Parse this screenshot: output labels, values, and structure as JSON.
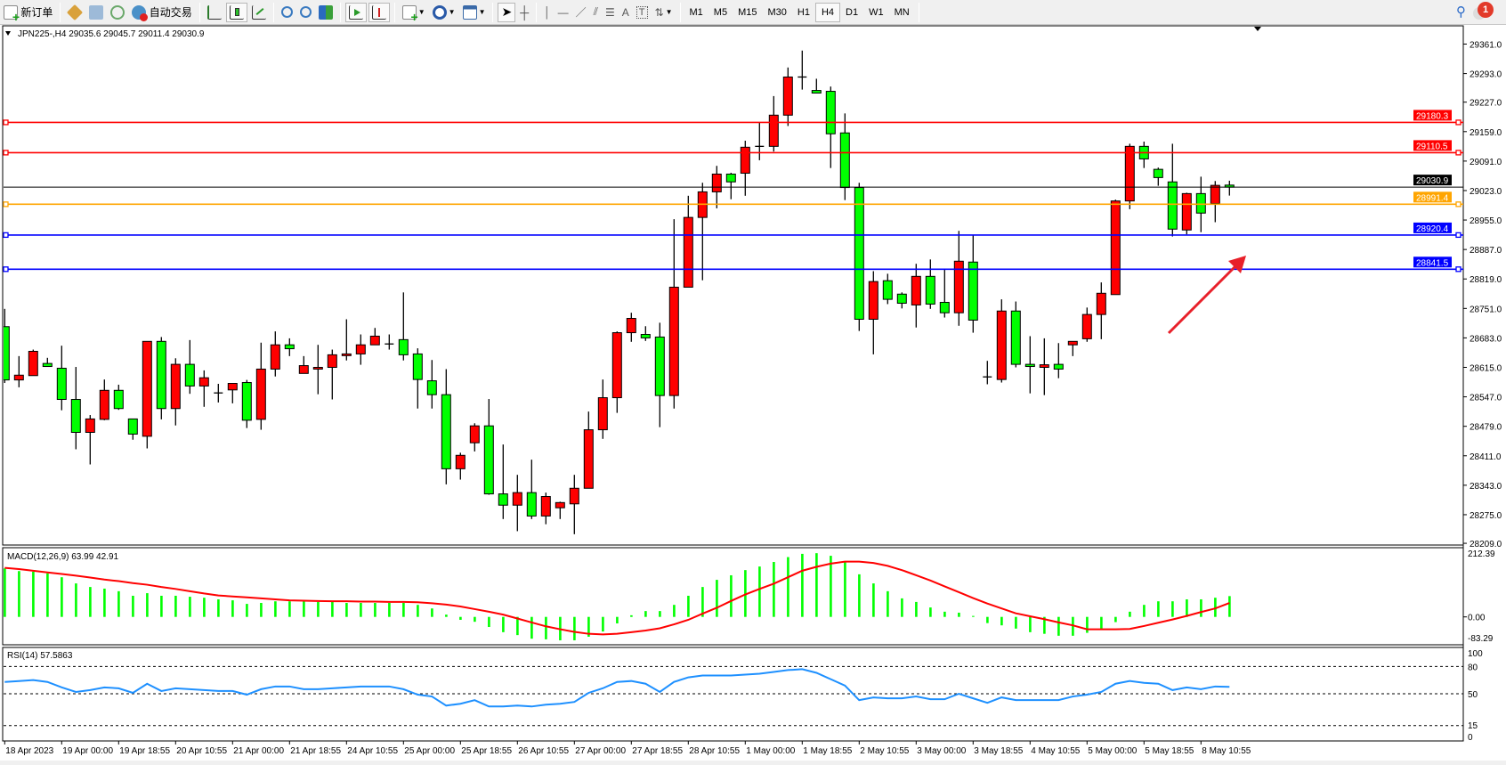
{
  "toolbar": {
    "new_order": "新订单",
    "auto_trading": "自动交易",
    "timeframes": [
      "M1",
      "M5",
      "M15",
      "M30",
      "H1",
      "H4",
      "D1",
      "W1",
      "MN"
    ],
    "active_timeframe": "H4",
    "notification_count": "1",
    "icons": [
      "new-order-icon",
      "market-watch-icon",
      "navigator-icon",
      "signals-icon",
      "auto-trading-icon",
      "bar-chart-icon",
      "candlestick-icon",
      "line-chart-icon",
      "zoom-in-icon",
      "zoom-out-icon",
      "tile-windows-icon",
      "chart-shift-icon",
      "autoscroll-icon",
      "indicators-icon",
      "periods-icon",
      "templates-icon",
      "cursor-icon",
      "crosshair-icon",
      "vertical-line-icon",
      "horizontal-line-icon",
      "trendline-icon",
      "fibonacci-icon",
      "fibo-fan-icon",
      "text-icon",
      "text-label-icon",
      "arrows-icon",
      "search-icon",
      "notification-icon"
    ]
  },
  "chart": {
    "header": "JPN225-,H4  29035.6 29045.7 29011.4 29030.9",
    "colors": {
      "bull": "#ff0000",
      "bear": "#00ff00",
      "macd_hist": "#00ff00",
      "signal": "#ff0000",
      "rsi": "#1e90ff",
      "arrow": "#e8202a"
    }
  },
  "chart_data": [
    {
      "type": "candlestick",
      "symbol": "JPN225-",
      "timeframe": "H4",
      "ylim": [
        28209,
        29361
      ],
      "y_ticks": [
        "29361.0",
        "29293.0",
        "29227.0",
        "29159.0",
        "29091.0",
        "29023.0",
        "28955.0",
        "28887.0",
        "28819.0",
        "28751.0",
        "28683.0",
        "28615.0",
        "28547.0",
        "28479.0",
        "28411.0",
        "28343.0",
        "28275.0",
        "28209.0"
      ],
      "x_ticks": [
        "18 Apr 2023",
        "19 Apr 00:00",
        "19 Apr 18:55",
        "20 Apr 10:55",
        "21 Apr 00:00",
        "21 Apr 18:55",
        "24 Apr 10:55",
        "25 Apr 00:00",
        "25 Apr 18:55",
        "26 Apr 10:55",
        "27 Apr 00:00",
        "27 Apr 18:55",
        "28 Apr 10:55",
        "1 May 00:00",
        "1 May 18:55",
        "2 May 10:55",
        "3 May 00:00",
        "3 May 18:55",
        "4 May 10:55",
        "5 May 00:00",
        "5 May 18:55",
        "8 May 10:55"
      ],
      "ohlc": [
        [
          28709,
          28750,
          28579,
          28586
        ],
        [
          28586,
          28641,
          28569,
          28597
        ],
        [
          28596,
          28656,
          28596,
          28652
        ],
        [
          28624,
          28637,
          28617,
          28617
        ],
        [
          28613,
          28665,
          28516,
          28541
        ],
        [
          28541,
          28616,
          28426,
          28465
        ],
        [
          28465,
          28505,
          28391,
          28496
        ],
        [
          28495,
          28587,
          28493,
          28562
        ],
        [
          28562,
          28575,
          28517,
          28520
        ],
        [
          28496,
          28496,
          28448,
          28461
        ],
        [
          28456,
          28675,
          28428,
          28675
        ],
        [
          28675,
          28685,
          28495,
          28520
        ],
        [
          28520,
          28636,
          28481,
          28622
        ],
        [
          28622,
          28678,
          28554,
          28572
        ],
        [
          28572,
          28608,
          28524,
          28591
        ],
        [
          28556,
          28577,
          28534,
          28556
        ],
        [
          28563,
          28578,
          28532,
          28578
        ],
        [
          28580,
          28586,
          28475,
          28493
        ],
        [
          28495,
          28672,
          28471,
          28611
        ],
        [
          28611,
          28698,
          28594,
          28667
        ],
        [
          28667,
          28682,
          28641,
          28658
        ],
        [
          28601,
          28641,
          28601,
          28619
        ],
        [
          28611,
          28667,
          28553,
          28615
        ],
        [
          28615,
          28656,
          28541,
          28644
        ],
        [
          28642,
          28726,
          28631,
          28646
        ],
        [
          28646,
          28691,
          28621,
          28667
        ],
        [
          28667,
          28706,
          28667,
          28687
        ],
        [
          28669,
          28691,
          28656,
          28669
        ],
        [
          28679,
          28788,
          28631,
          28644
        ],
        [
          28646,
          28659,
          28520,
          28587
        ],
        [
          28584,
          28632,
          28520,
          28552
        ],
        [
          28552,
          28611,
          28345,
          28381
        ],
        [
          28381,
          28418,
          28356,
          28412
        ],
        [
          28441,
          28486,
          28421,
          28480
        ],
        [
          28480,
          28542,
          28321,
          28323
        ],
        [
          28323,
          28437,
          28265,
          28297
        ],
        [
          28297,
          28367,
          28237,
          28326
        ],
        [
          28326,
          28402,
          28265,
          28272
        ],
        [
          28272,
          28326,
          28253,
          28317
        ],
        [
          28291,
          28305,
          28265,
          28303
        ],
        [
          28300,
          28367,
          28230,
          28336
        ],
        [
          28336,
          28513,
          28336,
          28471
        ],
        [
          28471,
          28587,
          28450,
          28545
        ],
        [
          28545,
          28698,
          28510,
          28695
        ],
        [
          28695,
          28741,
          28674,
          28728
        ],
        [
          28691,
          28710,
          28676,
          28683
        ],
        [
          28685,
          28718,
          28477,
          28550
        ],
        [
          28550,
          28957,
          28520,
          28800
        ],
        [
          28800,
          29011,
          28800,
          28961
        ],
        [
          28961,
          29041,
          28816,
          29020
        ],
        [
          29020,
          29080,
          28982,
          29061
        ],
        [
          29061,
          29064,
          29003,
          29043
        ],
        [
          29063,
          29138,
          29011,
          29123
        ],
        [
          29125,
          29180,
          29093,
          29125
        ],
        [
          29125,
          29241,
          29113,
          29197
        ],
        [
          29197,
          29307,
          29172,
          29285
        ],
        [
          29285,
          29346,
          29256,
          29285
        ],
        [
          29254,
          29281,
          29248,
          29248
        ],
        [
          29252,
          29263,
          29075,
          29154
        ],
        [
          29156,
          29201,
          29001,
          29030
        ],
        [
          29030,
          29041,
          28699,
          28726
        ],
        [
          28726,
          28837,
          28645,
          28813
        ],
        [
          28815,
          28831,
          28761,
          28772
        ],
        [
          28784,
          28788,
          28751,
          28763
        ],
        [
          28759,
          28854,
          28707,
          28825
        ],
        [
          28825,
          28864,
          28750,
          28761
        ],
        [
          28765,
          28841,
          28730,
          28741
        ],
        [
          28741,
          28930,
          28711,
          28860
        ],
        [
          28858,
          28920,
          28695,
          28724
        ],
        [
          28593,
          28630,
          28576,
          28593
        ],
        [
          28587,
          28772,
          28580,
          28745
        ],
        [
          28745,
          28767,
          28615,
          28622
        ],
        [
          28622,
          28687,
          28555,
          28617
        ],
        [
          28615,
          28682,
          28551,
          28621
        ],
        [
          28622,
          28671,
          28590,
          28611
        ],
        [
          28667,
          28675,
          28641,
          28675
        ],
        [
          28681,
          28753,
          28674,
          28737
        ],
        [
          28737,
          28811,
          28680,
          28786
        ],
        [
          28783,
          29002,
          28783,
          28999
        ],
        [
          28999,
          29131,
          28980,
          29125
        ],
        [
          29125,
          29136,
          29075,
          29096
        ],
        [
          29072,
          29076,
          29034,
          29053
        ],
        [
          29043,
          29131,
          28917,
          28934
        ],
        [
          28932,
          29018,
          28922,
          29016
        ],
        [
          29016,
          29055,
          28927,
          28971
        ],
        [
          28993,
          29045,
          28950,
          29035
        ],
        [
          29035.6,
          29045.7,
          29011.4,
          29030.9
        ]
      ],
      "horizontal_lines": [
        {
          "value": "29180.3",
          "color": "#ff0000"
        },
        {
          "value": "29110.5",
          "color": "#ff0000"
        },
        {
          "value": "29030.9",
          "color": "#000000",
          "current": true
        },
        {
          "value": "28991.4",
          "color": "#ffa500"
        },
        {
          "value": "28920.4",
          "color": "#0000ff"
        },
        {
          "value": "28841.5",
          "color": "#0000ff"
        }
      ]
    },
    {
      "type": "bar",
      "label": "MACD(12,26,9) 63.99 42.91",
      "ylim": [
        -83.29,
        212.39
      ],
      "y_ticks": [
        "212.39",
        "0.00",
        "-83.29"
      ],
      "histogram": [
        149,
        141,
        139,
        134,
        122,
        103,
        92,
        87,
        79,
        65,
        73,
        65,
        65,
        62,
        59,
        54,
        51,
        40,
        43,
        48,
        48,
        48,
        46,
        46,
        43,
        43,
        43,
        43,
        43,
        37,
        26,
        7,
        -9,
        -15,
        -31,
        -47,
        -56,
        -67,
        -69,
        -72,
        -72,
        -61,
        -45,
        -20,
        5,
        18,
        18,
        37,
        65,
        92,
        114,
        128,
        144,
        155,
        169,
        184,
        194,
        196,
        188,
        169,
        131,
        103,
        79,
        57,
        46,
        29,
        16,
        13,
        3,
        -19,
        -26,
        -36,
        -47,
        -52,
        -58,
        -58,
        -49,
        -36,
        -16,
        16,
        37,
        48,
        48,
        54,
        54,
        59,
        63.99
      ],
      "signal": [
        151,
        147,
        142,
        137,
        132,
        127,
        121,
        115,
        110,
        104,
        99,
        92,
        86,
        79,
        72,
        66,
        63,
        60,
        57,
        54,
        51,
        50,
        49,
        48,
        48,
        47,
        47,
        46,
        46,
        45,
        42,
        38,
        32,
        24,
        16,
        7,
        -5,
        -17,
        -29,
        -38,
        -46,
        -52,
        -54,
        -52,
        -47,
        -42,
        -35,
        -23,
        -9,
        10,
        28,
        49,
        69,
        86,
        102,
        122,
        142,
        154,
        164,
        170,
        170,
        166,
        157,
        144,
        128,
        112,
        94,
        76,
        58,
        41,
        26,
        11,
        2,
        -7,
        -17,
        -26,
        -38,
        -38,
        -38,
        -37,
        -28,
        -18,
        -8,
        3,
        15,
        26,
        42.91
      ]
    },
    {
      "type": "line",
      "label": "RSI(14) 57.5863",
      "ylim": [
        0,
        100
      ],
      "y_ticks": [
        "100",
        "80",
        "50",
        "15",
        "0"
      ],
      "levels": [
        80,
        50,
        15
      ],
      "values": [
        63,
        64,
        65,
        63,
        57,
        52,
        54,
        57,
        56,
        51,
        61,
        53,
        56,
        55,
        54,
        53,
        53,
        49,
        55,
        58,
        58,
        55,
        55,
        56,
        57,
        58,
        58,
        58,
        55,
        49,
        47,
        37,
        39,
        43,
        36,
        36,
        37,
        36,
        38,
        39,
        41,
        51,
        56,
        63,
        64,
        61,
        52,
        63,
        68,
        70,
        70,
        70,
        71,
        72,
        74,
        76,
        77,
        73,
        66,
        59,
        43,
        46,
        45,
        45,
        47,
        44,
        44,
        50,
        45,
        40,
        46,
        43,
        43,
        43,
        43,
        47,
        49,
        52,
        61,
        64,
        62,
        61,
        54,
        57,
        55,
        58,
        57.5863
      ]
    }
  ]
}
